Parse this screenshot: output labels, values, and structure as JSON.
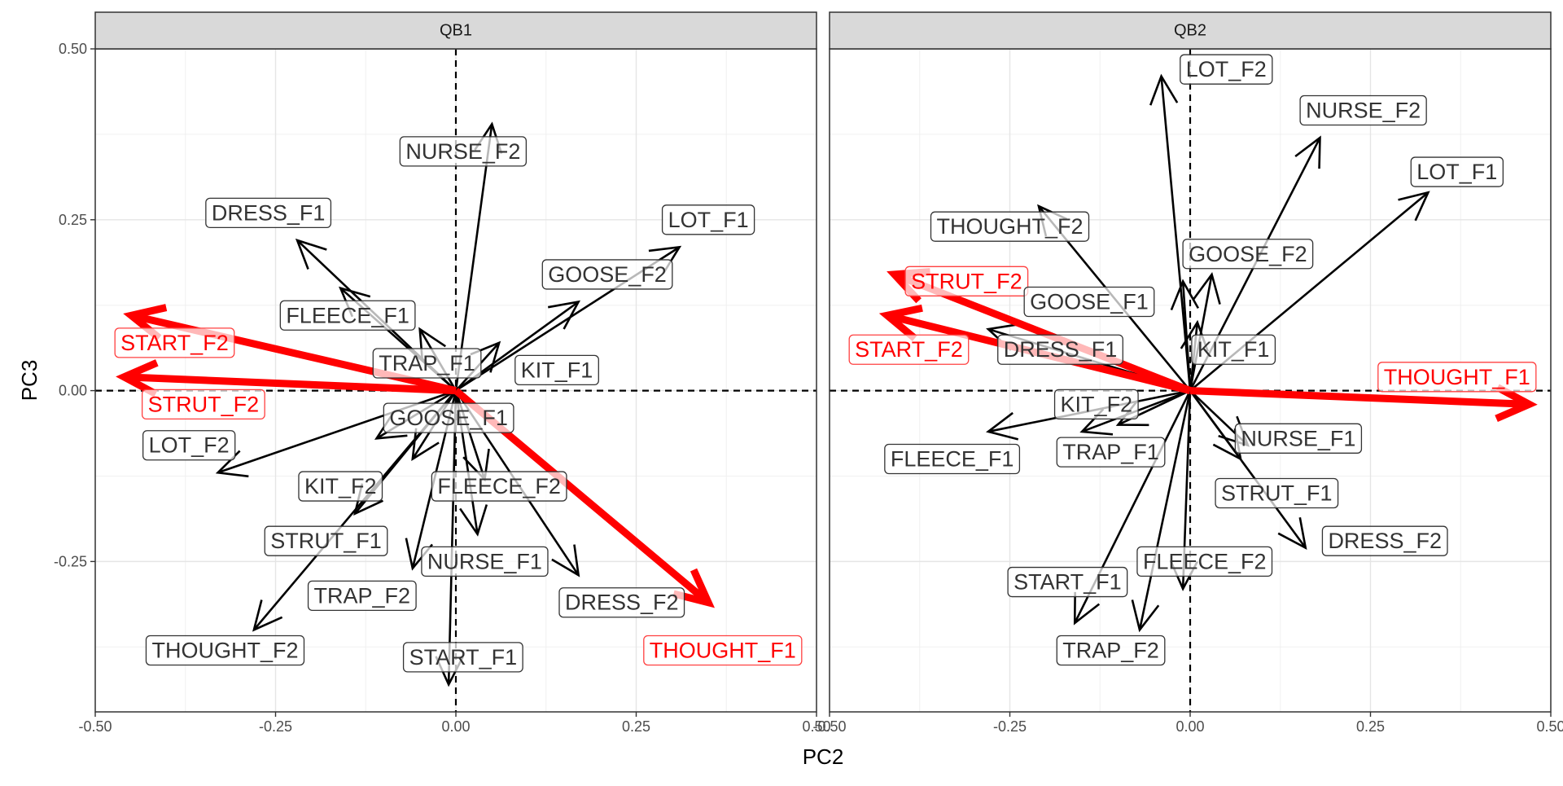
{
  "chart_data": [
    {
      "type": "biplot",
      "facet": "QB1",
      "xlabel": "PC2",
      "ylabel": "PC3",
      "xlim": [
        -0.5,
        0.5
      ],
      "ylim": [
        -0.47,
        0.5
      ],
      "x_ticks": [
        "-0.50",
        "-0.25",
        "0.00",
        "0.25",
        "0.50"
      ],
      "y_ticks": [
        "-0.25",
        "0.00",
        "0.25",
        "0.50"
      ],
      "grid": true,
      "reference_lines": {
        "x": 0.0,
        "y": 0.0
      },
      "highlight_color": "#ff0000",
      "default_color": "#000000",
      "arrows": [
        {
          "label": "NURSE_F2",
          "x": 0.05,
          "y": 0.39,
          "label_x": 0.01,
          "label_y": 0.35,
          "highlight": false
        },
        {
          "label": "DRESS_F1",
          "x": -0.22,
          "y": 0.22,
          "label_x": -0.26,
          "label_y": 0.26,
          "highlight": false
        },
        {
          "label": "LOT_F1",
          "x": 0.31,
          "y": 0.21,
          "label_x": 0.35,
          "label_y": 0.25,
          "highlight": false
        },
        {
          "label": "GOOSE_F2",
          "x": 0.17,
          "y": 0.13,
          "label_x": 0.21,
          "label_y": 0.17,
          "highlight": false
        },
        {
          "label": "FLEECE_F1",
          "x": -0.16,
          "y": 0.15,
          "label_x": -0.15,
          "label_y": 0.11,
          "highlight": false
        },
        {
          "label": "START_F2",
          "x": -0.45,
          "y": 0.11,
          "label_x": -0.39,
          "label_y": 0.07,
          "highlight": true
        },
        {
          "label": "TRAP_F1",
          "x": -0.05,
          "y": 0.09,
          "label_x": -0.04,
          "label_y": 0.04,
          "highlight": false
        },
        {
          "label": "KIT_F1",
          "x": 0.06,
          "y": 0.07,
          "label_x": 0.14,
          "label_y": 0.03,
          "highlight": false
        },
        {
          "label": "STRUT_F2",
          "x": -0.46,
          "y": 0.02,
          "label_x": -0.35,
          "label_y": -0.02,
          "highlight": true
        },
        {
          "label": "GOOSE_F1",
          "x": -0.06,
          "y": -0.1,
          "label_x": -0.01,
          "label_y": -0.04,
          "highlight": false
        },
        {
          "label": "LOT_F2",
          "x": -0.33,
          "y": -0.12,
          "label_x": -0.37,
          "label_y": -0.08,
          "highlight": false
        },
        {
          "label": "KIT_F2",
          "x": -0.14,
          "y": -0.18,
          "label_x": -0.16,
          "label_y": -0.14,
          "highlight": false
        },
        {
          "label": "FLEECE_F2",
          "x": 0.03,
          "y": -0.21,
          "label_x": 0.06,
          "label_y": -0.14,
          "highlight": false
        },
        {
          "label": "STRUT_F1",
          "x": -0.28,
          "y": -0.35,
          "label_x": -0.18,
          "label_y": -0.22,
          "highlight": false
        },
        {
          "label": "NURSE_F1",
          "x": 0.17,
          "y": -0.27,
          "label_x": 0.04,
          "label_y": -0.25,
          "highlight": false
        },
        {
          "label": "TRAP_F2",
          "x": -0.06,
          "y": -0.26,
          "label_x": -0.13,
          "label_y": -0.3,
          "highlight": false
        },
        {
          "label": "DRESS_F2",
          "x": 0.04,
          "y": -0.13,
          "label_x": 0.23,
          "label_y": -0.31,
          "highlight": false
        },
        {
          "label": "THOUGHT_F1",
          "x": 0.35,
          "y": -0.31,
          "label_x": 0.37,
          "label_y": -0.38,
          "highlight": true
        },
        {
          "label": "THOUGHT_F2",
          "x": -0.11,
          "y": -0.07,
          "label_x": -0.32,
          "label_y": -0.38,
          "highlight": false
        },
        {
          "label": "START_F1",
          "x": -0.01,
          "y": -0.43,
          "label_x": 0.01,
          "label_y": -0.39,
          "highlight": false
        }
      ]
    },
    {
      "type": "biplot",
      "facet": "QB2",
      "xlabel": "PC2",
      "ylabel": "PC3",
      "xlim": [
        -0.5,
        0.5
      ],
      "ylim": [
        -0.47,
        0.5
      ],
      "x_ticks": [
        "-0.50",
        "-0.25",
        "0.00",
        "0.25",
        "0.50"
      ],
      "y_ticks": [
        "-0.25",
        "0.00",
        "0.25",
        "0.50"
      ],
      "grid": true,
      "reference_lines": {
        "x": 0.0,
        "y": 0.0
      },
      "highlight_color": "#ff0000",
      "default_color": "#000000",
      "arrows": [
        {
          "label": "LOT_F2",
          "x": -0.04,
          "y": 0.46,
          "label_x": 0.05,
          "label_y": 0.47,
          "highlight": false
        },
        {
          "label": "NURSE_F2",
          "x": 0.18,
          "y": 0.37,
          "label_x": 0.24,
          "label_y": 0.41,
          "highlight": false
        },
        {
          "label": "LOT_F1",
          "x": 0.33,
          "y": 0.29,
          "label_x": 0.37,
          "label_y": 0.32,
          "highlight": false
        },
        {
          "label": "THOUGHT_F2",
          "x": -0.21,
          "y": 0.27,
          "label_x": -0.25,
          "label_y": 0.24,
          "highlight": false
        },
        {
          "label": "GOOSE_F2",
          "x": 0.03,
          "y": 0.17,
          "label_x": 0.08,
          "label_y": 0.2,
          "highlight": false
        },
        {
          "label": "STRUT_F2",
          "x": -0.41,
          "y": 0.17,
          "label_x": -0.31,
          "label_y": 0.16,
          "highlight": true
        },
        {
          "label": "GOOSE_F1",
          "x": -0.01,
          "y": 0.16,
          "label_x": -0.14,
          "label_y": 0.13,
          "highlight": false
        },
        {
          "label": "START_F2",
          "x": -0.42,
          "y": 0.11,
          "label_x": -0.39,
          "label_y": 0.06,
          "highlight": true
        },
        {
          "label": "DRESS_F1",
          "x": -0.28,
          "y": 0.09,
          "label_x": -0.18,
          "label_y": 0.06,
          "highlight": false
        },
        {
          "label": "KIT_F1",
          "x": 0.01,
          "y": 0.1,
          "label_x": 0.06,
          "label_y": 0.06,
          "highlight": false
        },
        {
          "label": "THOUGHT_F1",
          "x": 0.47,
          "y": -0.02,
          "label_x": 0.37,
          "label_y": 0.02,
          "highlight": true
        },
        {
          "label": "KIT_F2",
          "x": -0.1,
          "y": -0.05,
          "label_x": -0.13,
          "label_y": -0.02,
          "highlight": false
        },
        {
          "label": "FLEECE_F1",
          "x": -0.28,
          "y": -0.06,
          "label_x": -0.33,
          "label_y": -0.1,
          "highlight": false
        },
        {
          "label": "TRAP_F1",
          "x": -0.15,
          "y": -0.06,
          "label_x": -0.11,
          "label_y": -0.09,
          "highlight": false
        },
        {
          "label": "NURSE_F1",
          "x": 0.07,
          "y": -0.1,
          "label_x": 0.15,
          "label_y": -0.07,
          "highlight": false
        },
        {
          "label": "STRUT_F1",
          "x": 0.16,
          "y": -0.23,
          "label_x": 0.12,
          "label_y": -0.15,
          "highlight": false
        },
        {
          "label": "DRESS_F2",
          "x": 0.08,
          "y": -0.08,
          "label_x": 0.27,
          "label_y": -0.22,
          "highlight": false
        },
        {
          "label": "FLEECE_F2",
          "x": -0.01,
          "y": -0.29,
          "label_x": 0.02,
          "label_y": -0.25,
          "highlight": false
        },
        {
          "label": "START_F1",
          "x": -0.16,
          "y": -0.34,
          "label_x": -0.17,
          "label_y": -0.28,
          "highlight": false
        },
        {
          "label": "TRAP_F2",
          "x": -0.07,
          "y": -0.35,
          "label_x": -0.11,
          "label_y": -0.38,
          "highlight": false
        }
      ]
    }
  ]
}
